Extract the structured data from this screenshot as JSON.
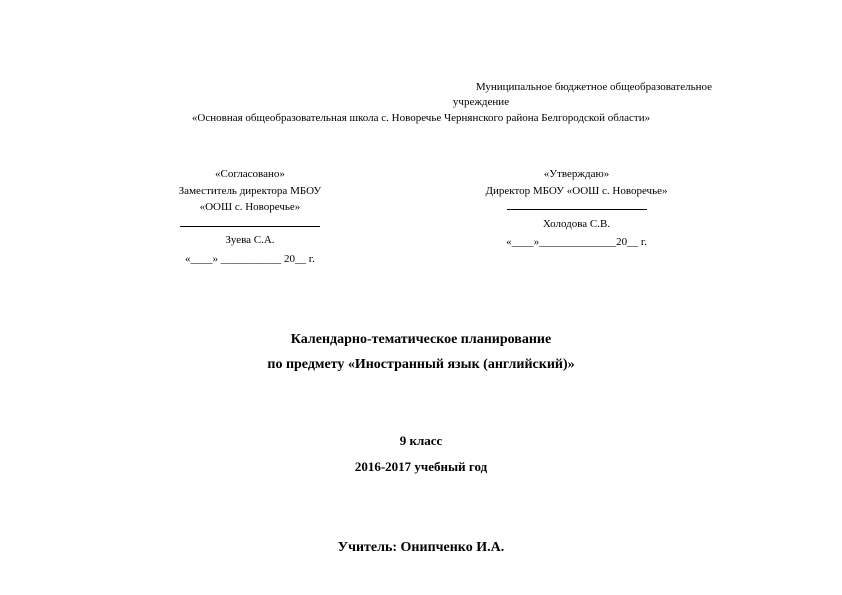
{
  "institution": {
    "line1": "Муниципальное бюджетное общеобразовательное",
    "line2": "учреждение",
    "line3": "«Основная общеобразовательная школа с. Новоречье Чернянского района Белгородской области»"
  },
  "approval_left": {
    "title": "«Согласовано»",
    "position": "Заместитель директора МБОУ",
    "org": "«ООШ с. Новоречье»",
    "name": "Зуева С.А.",
    "date": "«____» ___________ 20__ г."
  },
  "approval_right": {
    "title": "«Утверждаю»",
    "position": "Директор МБОУ «ООШ с. Новоречье»",
    "name": "Холодова С.В.",
    "date": "«____»______________20__ г."
  },
  "main_title": {
    "line1": "Календарно-тематическое планирование",
    "line2": "по  предмету «Иностранный язык (английский)»"
  },
  "class_info": {
    "grade": "9 класс",
    "year": "2016-2017 учебный год"
  },
  "teacher": {
    "label": "Учитель: Онипченко И.А."
  },
  "style": {
    "background_color": "#ffffff",
    "text_color": "#000000",
    "font_family": "Times New Roman",
    "body_fontsize": 11,
    "title_fontsize": 14,
    "subtitle_fontsize": 13
  }
}
